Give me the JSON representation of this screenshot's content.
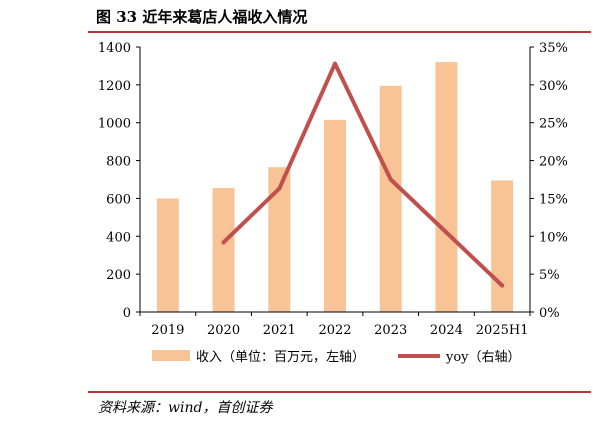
{
  "figure": {
    "title": "图 33  近年来葛店人福收入情况"
  },
  "chart_data": {
    "type": "bar",
    "categories": [
      "2019",
      "2020",
      "2021",
      "2022",
      "2023",
      "2024",
      "2025H1"
    ],
    "series": [
      {
        "name": "收入（单位：百万元，左轴）",
        "type": "bar",
        "axis": "left",
        "values": [
          600,
          655,
          765,
          1015,
          1195,
          1320,
          695
        ],
        "color": "#f8c496"
      },
      {
        "name": "yoy（右轴）",
        "type": "line",
        "axis": "right",
        "values": [
          null,
          9.2,
          16.3,
          32.8,
          17.5,
          10.5,
          3.5
        ],
        "color": "#c0504d"
      }
    ],
    "y_left": {
      "min": 0,
      "max": 1400,
      "ticks": [
        "0",
        "200",
        "400",
        "600",
        "800",
        "1000",
        "1200",
        "1400"
      ]
    },
    "y_right": {
      "min": 0,
      "max": 35,
      "ticks": [
        "0%",
        "5%",
        "10%",
        "15%",
        "20%",
        "25%",
        "30%",
        "35%"
      ]
    },
    "legend_position": "bottom",
    "grid": false
  },
  "source": {
    "text": "资料来源：wind，首创证券"
  }
}
